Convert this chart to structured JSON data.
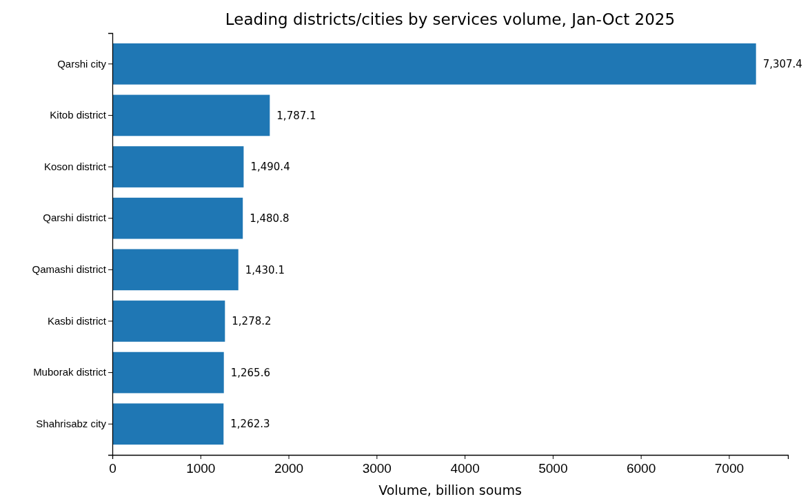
{
  "chart_data": {
    "type": "bar",
    "orientation": "horizontal",
    "title": "Leading districts/cities by services volume, Jan-Oct 2025",
    "xlabel": "Volume, billion soums",
    "categories": [
      "Qarshi city",
      "Kitob district",
      "Koson district",
      "Qarshi district",
      "Qamashi district",
      "Kasbi district",
      "Muborak district",
      "Shahrisabz city"
    ],
    "values": [
      7307.4,
      1787.1,
      1490.4,
      1480.8,
      1430.1,
      1278.2,
      1265.6,
      1262.3
    ],
    "value_labels": [
      "7,307.4",
      "1,787.1",
      "1,490.4",
      "1,480.8",
      "1,430.1",
      "1,278.2",
      "1,265.6",
      "1,262.3"
    ],
    "color": "#1f77b4",
    "xlim": [
      0,
      7670
    ],
    "xticks": [
      0,
      1000,
      2000,
      3000,
      4000,
      5000,
      6000,
      7000
    ],
    "grid": false
  }
}
